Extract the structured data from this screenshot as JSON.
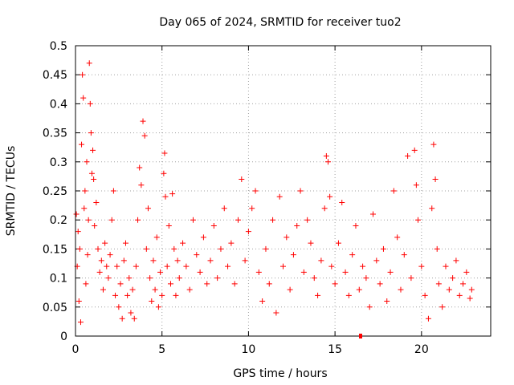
{
  "chart_data": {
    "type": "scatter",
    "title": "Day 065 of 2024, SRMTID for receiver tuo2",
    "xlabel": "GPS time / hours",
    "ylabel": "SRMTID / TECUs",
    "xlim": [
      0,
      24
    ],
    "ylim": [
      0,
      0.5
    ],
    "xticks": [
      0,
      5,
      10,
      15,
      20
    ],
    "xtick_labels": [
      "0",
      "5",
      "10",
      "15",
      "20"
    ],
    "yticks": [
      0,
      0.05,
      0.1,
      0.15,
      0.2,
      0.25,
      0.3,
      0.35,
      0.4,
      0.45,
      0.5
    ],
    "ytick_labels": [
      "0",
      "0.05",
      "0.1",
      "0.15",
      "0.2",
      "0.25",
      "0.3",
      "0.35",
      "0.4",
      "0.45",
      "0.5"
    ],
    "grid": true,
    "marker": "+",
    "series_color": "#ff0000",
    "series": [
      {
        "name": "SRMTID",
        "points": [
          [
            0.05,
            0.21
          ],
          [
            0.1,
            0.12
          ],
          [
            0.15,
            0.18
          ],
          [
            0.2,
            0.06
          ],
          [
            0.25,
            0.15
          ],
          [
            0.3,
            0.024
          ],
          [
            0.35,
            0.33
          ],
          [
            0.4,
            0.45
          ],
          [
            0.45,
            0.41
          ],
          [
            0.5,
            0.22
          ],
          [
            0.55,
            0.25
          ],
          [
            0.6,
            0.09
          ],
          [
            0.65,
            0.3
          ],
          [
            0.7,
            0.14
          ],
          [
            0.75,
            0.2
          ],
          [
            0.8,
            0.47
          ],
          [
            0.85,
            0.4
          ],
          [
            0.9,
            0.35
          ],
          [
            0.95,
            0.28
          ],
          [
            1.0,
            0.32
          ],
          [
            1.05,
            0.27
          ],
          [
            1.1,
            0.19
          ],
          [
            1.2,
            0.23
          ],
          [
            1.3,
            0.15
          ],
          [
            1.4,
            0.11
          ],
          [
            1.5,
            0.13
          ],
          [
            1.6,
            0.08
          ],
          [
            1.7,
            0.16
          ],
          [
            1.8,
            0.12
          ],
          [
            1.9,
            0.1
          ],
          [
            2.0,
            0.14
          ],
          [
            2.1,
            0.2
          ],
          [
            2.2,
            0.25
          ],
          [
            2.3,
            0.07
          ],
          [
            2.4,
            0.12
          ],
          [
            2.5,
            0.05
          ],
          [
            2.6,
            0.09
          ],
          [
            2.7,
            0.03
          ],
          [
            2.8,
            0.13
          ],
          [
            2.9,
            0.16
          ],
          [
            3.0,
            0.07
          ],
          [
            3.1,
            0.1
          ],
          [
            3.2,
            0.04
          ],
          [
            3.3,
            0.08
          ],
          [
            3.4,
            0.03
          ],
          [
            3.5,
            0.12
          ],
          [
            3.6,
            0.2
          ],
          [
            3.7,
            0.29
          ],
          [
            3.8,
            0.26
          ],
          [
            3.9,
            0.37
          ],
          [
            4.0,
            0.345
          ],
          [
            4.1,
            0.15
          ],
          [
            4.2,
            0.22
          ],
          [
            4.3,
            0.1
          ],
          [
            4.4,
            0.06
          ],
          [
            4.5,
            0.13
          ],
          [
            4.6,
            0.08
          ],
          [
            4.7,
            0.17
          ],
          [
            4.8,
            0.05
          ],
          [
            4.9,
            0.11
          ],
          [
            5.0,
            0.07
          ],
          [
            5.1,
            0.28
          ],
          [
            5.15,
            0.315
          ],
          [
            5.2,
            0.24
          ],
          [
            5.3,
            0.12
          ],
          [
            5.4,
            0.19
          ],
          [
            5.5,
            0.09
          ],
          [
            5.6,
            0.245
          ],
          [
            5.7,
            0.15
          ],
          [
            5.8,
            0.07
          ],
          [
            5.9,
            0.13
          ],
          [
            6.0,
            0.1
          ],
          [
            6.2,
            0.16
          ],
          [
            6.4,
            0.12
          ],
          [
            6.6,
            0.08
          ],
          [
            6.8,
            0.2
          ],
          [
            7.0,
            0.14
          ],
          [
            7.2,
            0.11
          ],
          [
            7.4,
            0.17
          ],
          [
            7.6,
            0.09
          ],
          [
            7.8,
            0.13
          ],
          [
            8.0,
            0.19
          ],
          [
            8.2,
            0.1
          ],
          [
            8.4,
            0.15
          ],
          [
            8.6,
            0.22
          ],
          [
            8.8,
            0.12
          ],
          [
            9.0,
            0.16
          ],
          [
            9.2,
            0.09
          ],
          [
            9.4,
            0.2
          ],
          [
            9.6,
            0.27
          ],
          [
            9.8,
            0.13
          ],
          [
            10.0,
            0.18
          ],
          [
            10.2,
            0.22
          ],
          [
            10.4,
            0.25
          ],
          [
            10.6,
            0.11
          ],
          [
            10.8,
            0.06
          ],
          [
            11.0,
            0.15
          ],
          [
            11.2,
            0.09
          ],
          [
            11.4,
            0.2
          ],
          [
            11.6,
            0.04
          ],
          [
            11.8,
            0.24
          ],
          [
            12.0,
            0.12
          ],
          [
            12.2,
            0.17
          ],
          [
            12.4,
            0.08
          ],
          [
            12.6,
            0.14
          ],
          [
            12.8,
            0.19
          ],
          [
            13.0,
            0.25
          ],
          [
            13.2,
            0.11
          ],
          [
            13.4,
            0.2
          ],
          [
            13.6,
            0.16
          ],
          [
            13.8,
            0.1
          ],
          [
            14.0,
            0.07
          ],
          [
            14.2,
            0.13
          ],
          [
            14.4,
            0.22
          ],
          [
            14.5,
            0.31
          ],
          [
            14.6,
            0.3
          ],
          [
            14.7,
            0.24
          ],
          [
            14.8,
            0.12
          ],
          [
            15.0,
            0.09
          ],
          [
            15.2,
            0.16
          ],
          [
            15.4,
            0.23
          ],
          [
            15.6,
            0.11
          ],
          [
            15.8,
            0.07
          ],
          [
            16.0,
            0.14
          ],
          [
            16.2,
            0.19
          ],
          [
            16.4,
            0.08
          ],
          [
            16.6,
            0.12
          ],
          [
            16.8,
            0.1
          ],
          [
            17.0,
            0.05
          ],
          [
            17.2,
            0.21
          ],
          [
            17.4,
            0.13
          ],
          [
            17.6,
            0.09
          ],
          [
            17.8,
            0.15
          ],
          [
            18.0,
            0.06
          ],
          [
            18.2,
            0.11
          ],
          [
            18.4,
            0.25
          ],
          [
            18.6,
            0.17
          ],
          [
            18.8,
            0.08
          ],
          [
            19.0,
            0.14
          ],
          [
            19.2,
            0.31
          ],
          [
            19.4,
            0.1
          ],
          [
            19.6,
            0.32
          ],
          [
            19.7,
            0.26
          ],
          [
            19.8,
            0.2
          ],
          [
            20.0,
            0.12
          ],
          [
            20.2,
            0.07
          ],
          [
            20.4,
            0.03
          ],
          [
            20.6,
            0.22
          ],
          [
            20.7,
            0.33
          ],
          [
            20.8,
            0.27
          ],
          [
            20.9,
            0.15
          ],
          [
            21.0,
            0.09
          ],
          [
            21.2,
            0.05
          ],
          [
            21.4,
            0.12
          ],
          [
            21.6,
            0.08
          ],
          [
            21.8,
            0.1
          ],
          [
            22.0,
            0.13
          ],
          [
            22.2,
            0.07
          ],
          [
            22.4,
            0.09
          ],
          [
            22.6,
            0.11
          ],
          [
            22.8,
            0.065
          ],
          [
            22.9,
            0.08
          ]
        ]
      }
    ]
  }
}
